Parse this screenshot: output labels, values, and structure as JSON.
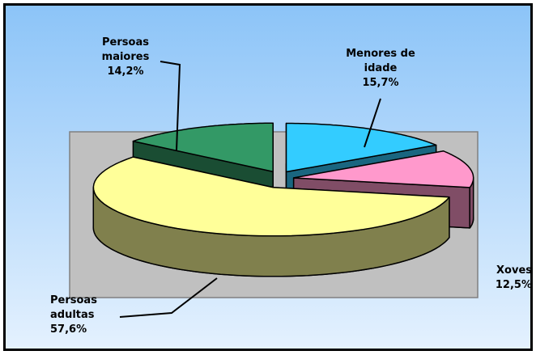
{
  "chart_data": {
    "type": "pie",
    "categories": [
      "Menores de idade",
      "Xoves",
      "Persoas adultas",
      "Persoas maiores"
    ],
    "values": [
      15.7,
      12.5,
      57.6,
      14.2
    ],
    "value_labels": [
      "15,7%",
      "12,5%",
      "57,6%",
      "14,2%"
    ],
    "colors": [
      "#33ccff",
      "#ff99cc",
      "#ffff99",
      "#339966"
    ]
  }
}
